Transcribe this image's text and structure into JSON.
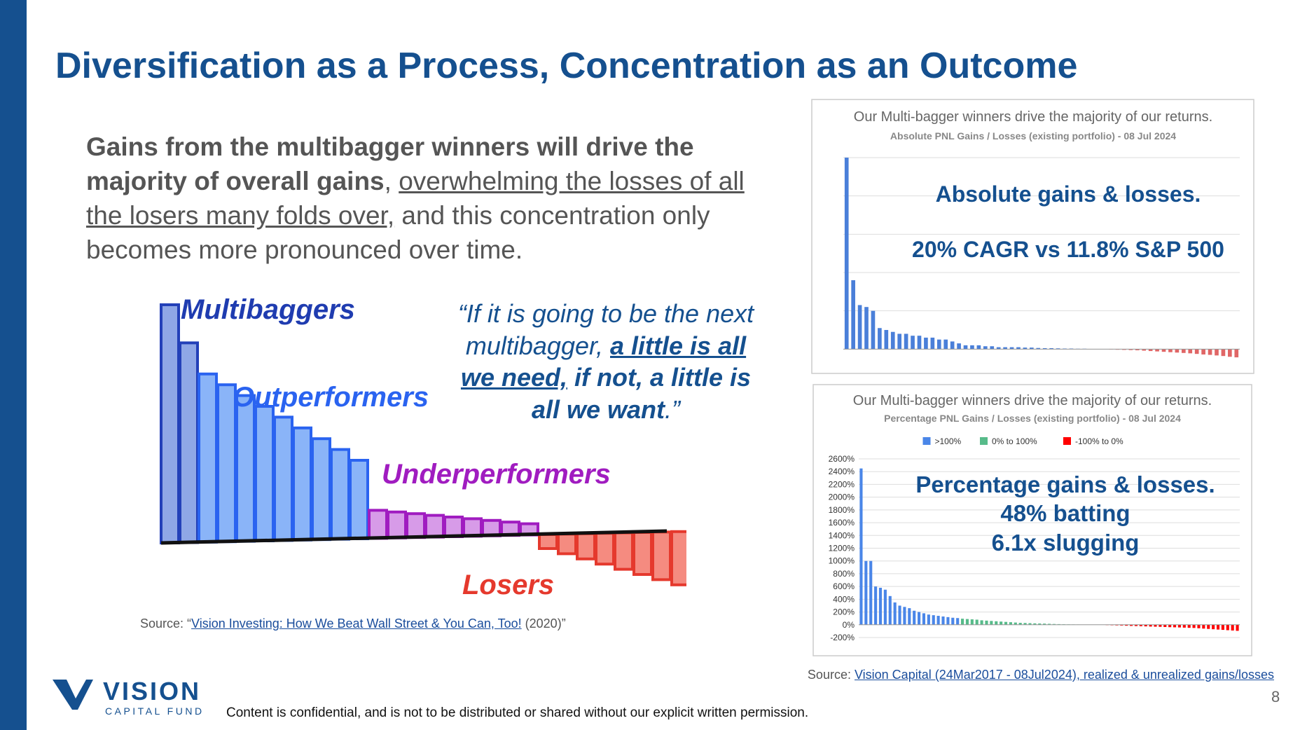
{
  "header": {
    "title": "Diversification as a Process, Concentration as an Outcome"
  },
  "body": {
    "bold": "Gains from the multibagger winners will drive the majority of overall gains",
    "comma": ",",
    "underlined": "overwhelming the losses of all the losers many folds over,",
    "rest": "and this concentration only becomes more pronounced over time."
  },
  "illustration": {
    "labels": [
      "Multibaggers",
      "Outperformers",
      "Underperformers",
      "Losers"
    ]
  },
  "quote": {
    "start": "“If it is going to be the next multibagger,",
    "emphasis": "a little is all we need,",
    "bold": "if not, a little is all we want",
    "end": ".”"
  },
  "left_source": {
    "prefix": "Source: “",
    "link": "Vision Investing: How We Beat Wall Street & You Can, Too!",
    "suffix": "(2020)”"
  },
  "chart_data": [
    {
      "type": "bar",
      "title": "Our Multi-bagger winners drive the majority of our returns.",
      "subtitle": "Absolute PNL Gains / Losses (existing portfolio) - 08 Jul 2024",
      "annotations": [
        "Absolute gains & losses.",
        "20% CAGR vs 11.8% S&P 500"
      ],
      "color": "#4a7fd9",
      "negative_color": "#e06666",
      "grid": true,
      "ylim": [
        -5,
        100
      ],
      "values": [
        100,
        36,
        23,
        22,
        20,
        11,
        10,
        9,
        8,
        8,
        7,
        7,
        6,
        6,
        5,
        5,
        4,
        3,
        2,
        2,
        2,
        1.5,
        1.5,
        1,
        1,
        1,
        1,
        0.8,
        0.8,
        0.6,
        0.5,
        0.5,
        0.4,
        0.3,
        0.3,
        0.2,
        0.2,
        0.1,
        0.1,
        0.1,
        -0.2,
        -0.3,
        -0.4,
        -0.5,
        -0.6,
        -0.8,
        -1,
        -1.2,
        -1.4,
        -1.6,
        -1.8,
        -2,
        -2.2,
        -2.5,
        -2.8,
        -3,
        -3.3,
        -3.6,
        -4,
        -4.3
      ]
    },
    {
      "type": "bar",
      "title": "Our Multi-bagger winners drive the majority of our returns.",
      "subtitle": "Percentage PNL Gains / Losses (existing portfolio) - 08 Jul 2024",
      "annotations": [
        "Percentage gains & losses.",
        "48% batting",
        "6.1x slugging"
      ],
      "grid": true,
      "ylim": [
        -200,
        2600
      ],
      "yticks": [
        {
          "value": -200,
          "label": "-200%"
        },
        {
          "value": 0,
          "label": "0%"
        },
        {
          "value": 200,
          "label": "200%"
        },
        {
          "value": 400,
          "label": "400%"
        },
        {
          "value": 600,
          "label": "600%"
        },
        {
          "value": 800,
          "label": "800%"
        },
        {
          "value": 1000,
          "label": "1000%"
        },
        {
          "value": 1200,
          "label": "1200%"
        },
        {
          "value": 1400,
          "label": "1400%"
        },
        {
          "value": 1600,
          "label": "1600%"
        },
        {
          "value": 1800,
          "label": "1800%"
        },
        {
          "value": 2000,
          "label": "2000%"
        },
        {
          "value": 2200,
          "label": "2200%"
        },
        {
          "value": 2400,
          "label": "2400%"
        },
        {
          "value": 2600,
          "label": "2600%"
        }
      ],
      "series": [
        {
          "name": ">100%",
          "color": "#4a86e8",
          "values": [
            2450,
            1000,
            1000,
            600,
            580,
            550,
            450,
            350,
            300,
            280,
            260,
            220,
            200,
            180,
            160,
            150,
            140,
            130,
            120,
            110,
            105
          ]
        },
        {
          "name": "0% to 100%",
          "color": "#57bb8a",
          "values": [
            95,
            90,
            85,
            80,
            70,
            65,
            60,
            55,
            50,
            45,
            40,
            35,
            30,
            28,
            25,
            22,
            20,
            18,
            15,
            12,
            10,
            8,
            6,
            5,
            4,
            3,
            2,
            2,
            1,
            1
          ]
        },
        {
          "name": "-100% to 0%",
          "color": "#ff0000",
          "values": [
            -5,
            -8,
            -10,
            -12,
            -15,
            -18,
            -20,
            -22,
            -25,
            -28,
            -30,
            -32,
            -35,
            -38,
            -40,
            -42,
            -45,
            -48,
            -50,
            -55,
            -60,
            -65,
            -70,
            -75,
            -80,
            -85,
            -90,
            -95
          ]
        }
      ]
    }
  ],
  "right_source": {
    "prefix": "Source:",
    "link": "Vision Capital (24Mar2017 - 08Jul2024), realized & unrealized gains/losses"
  },
  "page_number": "8",
  "logo": {
    "name": "VISION",
    "tagline": "CAPITAL FUND"
  },
  "footer": "Content is confidential, and is not to be distributed or shared without our explicit written permission."
}
